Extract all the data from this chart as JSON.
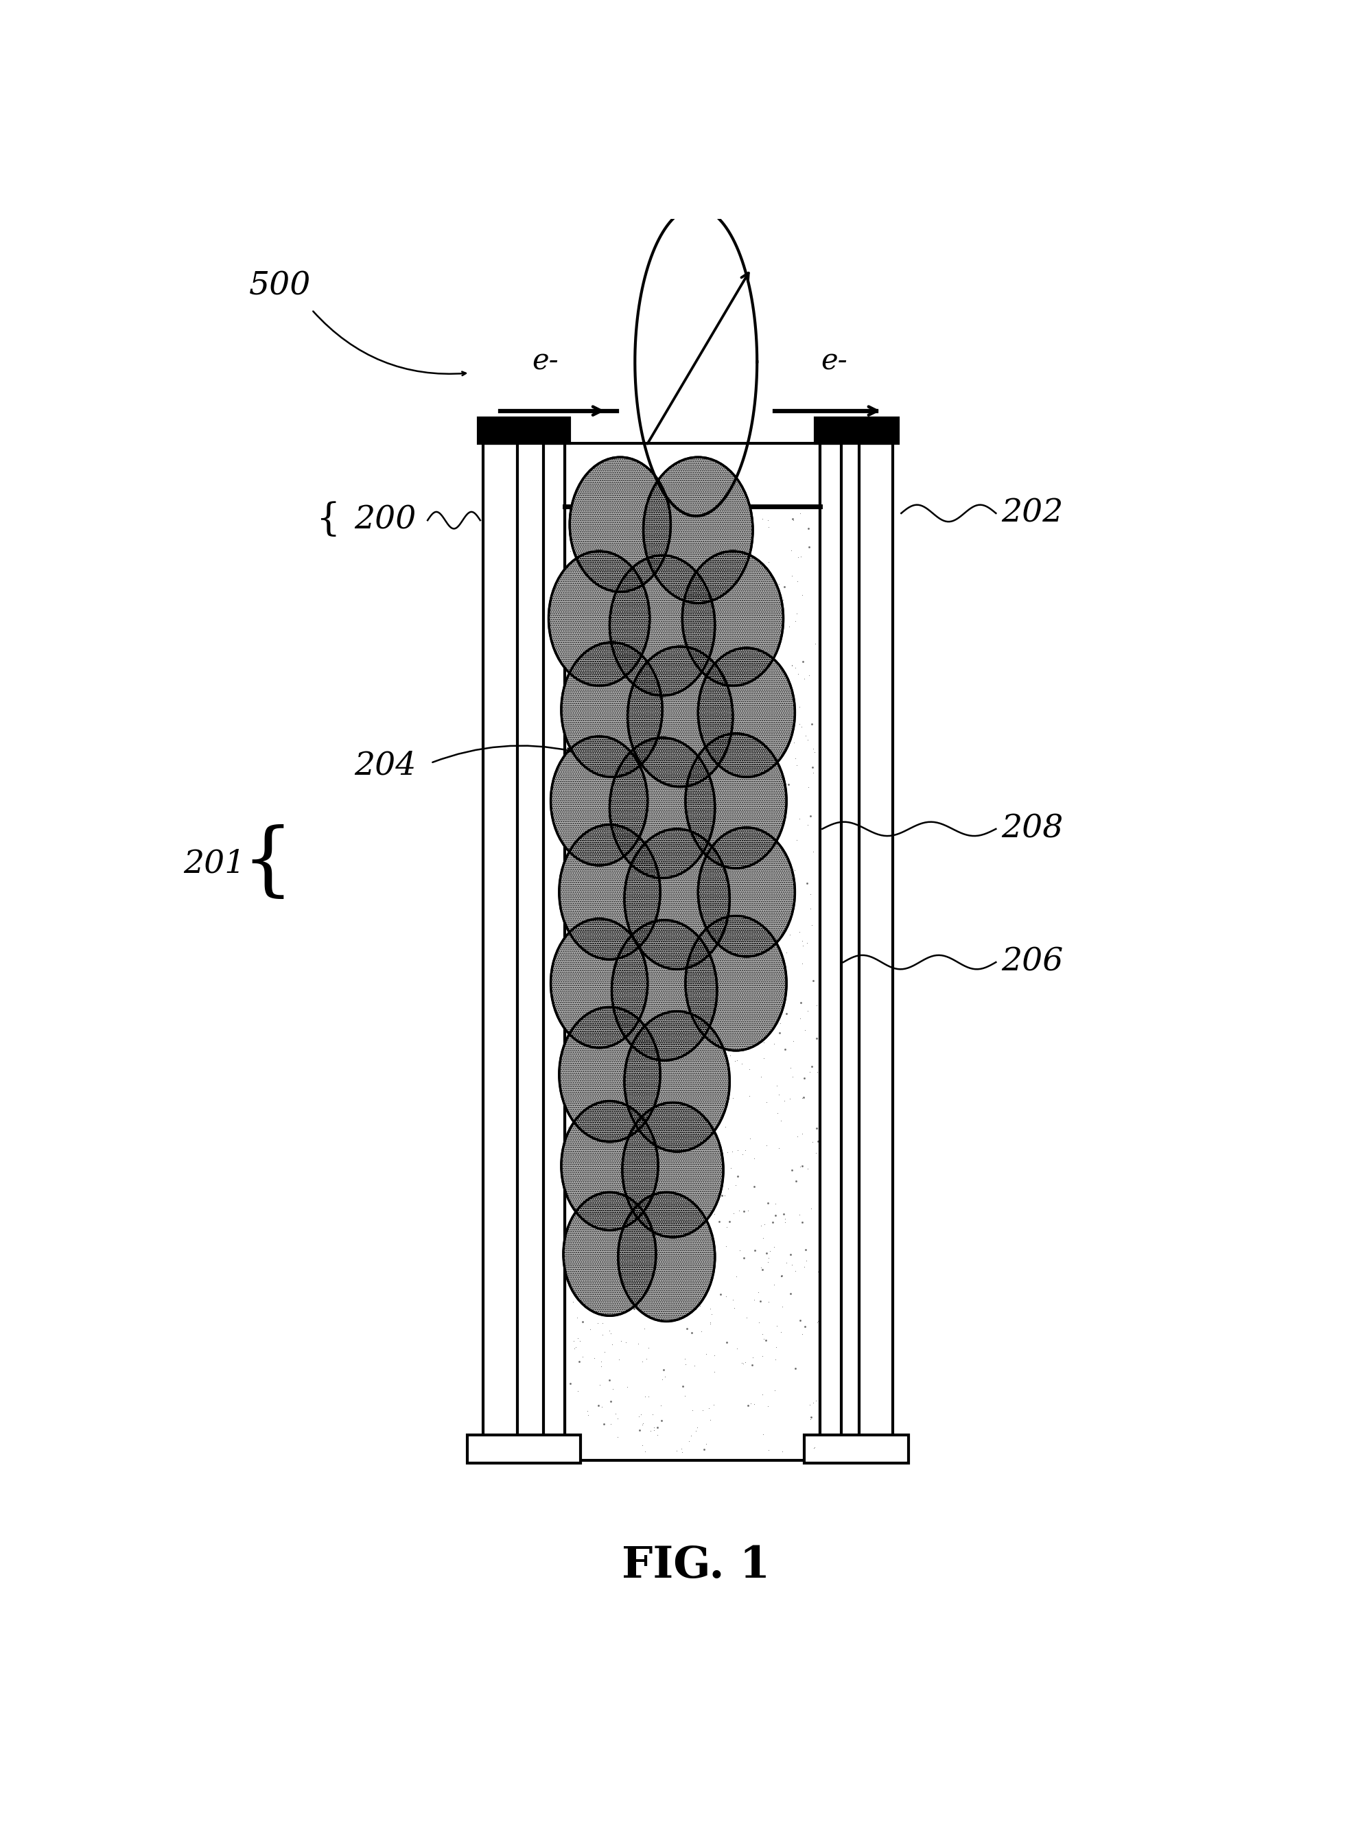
{
  "bg_color": "#ffffff",
  "fig_label": "FIG. 1",
  "label_500": "500",
  "label_200": "200",
  "label_201": "201",
  "label_202": "202",
  "label_204": "204",
  "label_206": "206",
  "label_208": "208",
  "electron_label": "e-",
  "circles": [
    [
      0.428,
      0.782,
      0.048
    ],
    [
      0.502,
      0.778,
      0.052
    ],
    [
      0.408,
      0.715,
      0.048
    ],
    [
      0.468,
      0.71,
      0.05
    ],
    [
      0.535,
      0.715,
      0.048
    ],
    [
      0.42,
      0.65,
      0.048
    ],
    [
      0.485,
      0.645,
      0.05
    ],
    [
      0.548,
      0.648,
      0.046
    ],
    [
      0.408,
      0.585,
      0.046
    ],
    [
      0.468,
      0.58,
      0.05
    ],
    [
      0.538,
      0.585,
      0.048
    ],
    [
      0.418,
      0.52,
      0.048
    ],
    [
      0.482,
      0.515,
      0.05
    ],
    [
      0.548,
      0.52,
      0.046
    ],
    [
      0.408,
      0.455,
      0.046
    ],
    [
      0.47,
      0.45,
      0.05
    ],
    [
      0.538,
      0.455,
      0.048
    ],
    [
      0.418,
      0.39,
      0.048
    ],
    [
      0.482,
      0.385,
      0.05
    ],
    [
      0.418,
      0.325,
      0.046
    ],
    [
      0.478,
      0.322,
      0.048
    ],
    [
      0.418,
      0.262,
      0.044
    ],
    [
      0.472,
      0.26,
      0.046
    ]
  ]
}
